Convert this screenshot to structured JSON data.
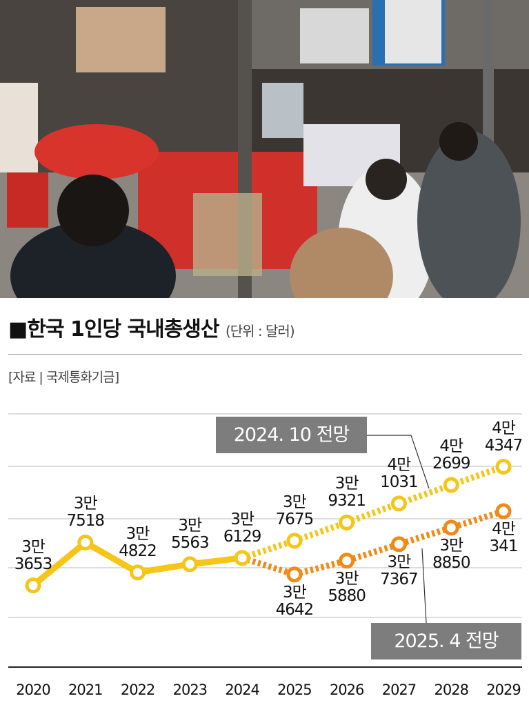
{
  "header": {
    "title": "■한국 1인당 국내총생산",
    "unit": "(단위 : 달러)",
    "source": "[자료 | 국제통화기금]"
  },
  "chart_data": {
    "type": "line",
    "categories": [
      "2020",
      "2021",
      "2022",
      "2023",
      "2024",
      "2025",
      "2026",
      "2027",
      "2028",
      "2029"
    ],
    "ylim": [
      26300,
      49100
    ],
    "series": [
      {
        "color": "#f5c518",
        "dashed": false,
        "values": [
          33653,
          37518,
          34822,
          35563,
          36129,
          null,
          null,
          null,
          null,
          null
        ],
        "value_labels": [
          "3만\n3653",
          "3만\n7518",
          "3만\n4822",
          "3만\n5563",
          "3만\n6129",
          null,
          null,
          null,
          null,
          null
        ]
      },
      {
        "name": "2024. 10 전망",
        "color": "#f5c518",
        "dashed": true,
        "values": [
          null,
          null,
          null,
          null,
          null,
          37675,
          39321,
          41031,
          42699,
          44347
        ],
        "value_labels": [
          null,
          null,
          null,
          null,
          null,
          "3만\n7675",
          "3만\n9321",
          "4만\n1031",
          "4만\n2699",
          "4만\n4347"
        ]
      },
      {
        "name": "2025. 4 전망",
        "color": "#f08a16",
        "dashed": true,
        "values": [
          null,
          null,
          null,
          null,
          null,
          34642,
          35880,
          37367,
          38850,
          40341
        ],
        "value_labels": [
          null,
          null,
          null,
          null,
          null,
          "3만\n4642",
          "3만\n5880",
          "3만\n7367",
          "3만\n8850",
          "4만\n341"
        ]
      }
    ]
  }
}
